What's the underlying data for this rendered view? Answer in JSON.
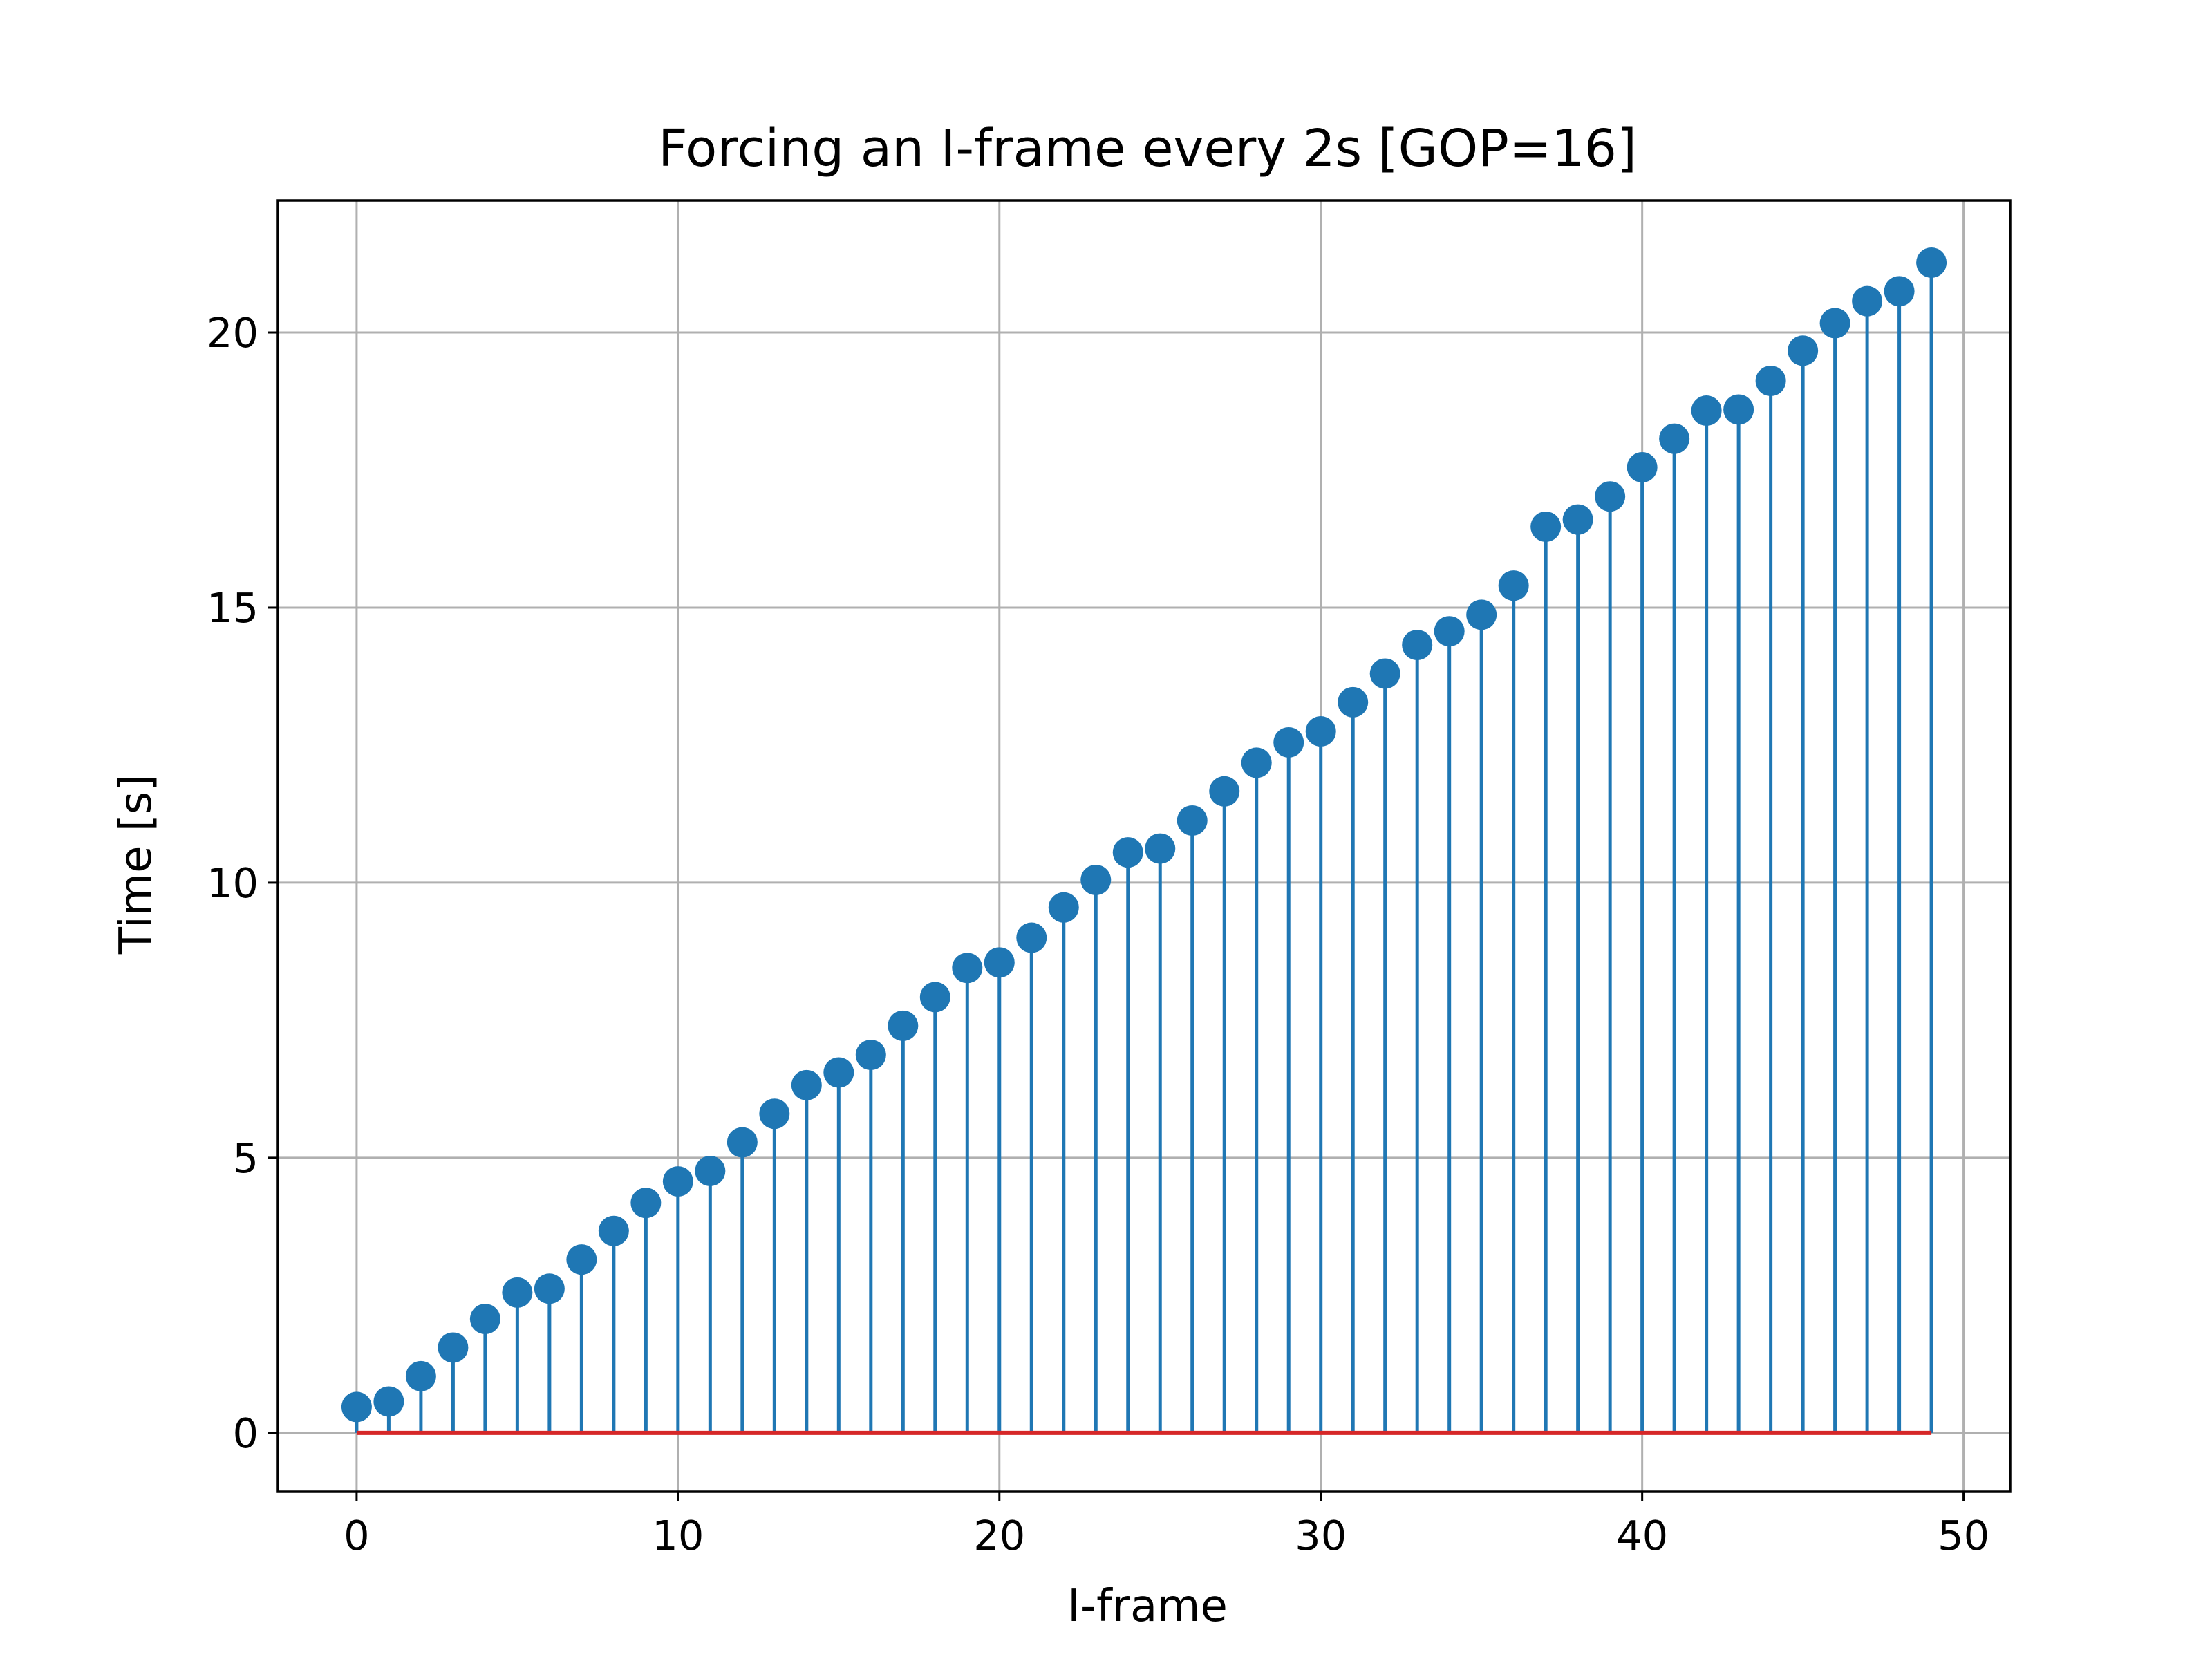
{
  "chart_data": {
    "type": "stem",
    "title": "Forcing an I-frame every 2s [GOP=16]",
    "xlabel": "I-frame",
    "ylabel": "Time [s]",
    "xlim": [
      -2.45,
      51.45
    ],
    "ylim": [
      -1.07,
      22.4
    ],
    "xticks": [
      0,
      10,
      20,
      30,
      40,
      50
    ],
    "yticks": [
      0,
      5,
      10,
      15,
      20
    ],
    "grid": true,
    "legend": null,
    "baseline": 0,
    "colors": {
      "stem": "#1f77b4",
      "marker": "#1f77b4",
      "baseline": "#d62728"
    },
    "x": [
      0,
      1,
      2,
      3,
      4,
      5,
      6,
      7,
      8,
      9,
      10,
      11,
      12,
      13,
      14,
      15,
      16,
      17,
      18,
      19,
      20,
      21,
      22,
      23,
      24,
      25,
      26,
      27,
      28,
      29,
      30,
      31,
      32,
      33,
      34,
      35,
      36,
      37,
      38,
      39,
      40,
      41,
      42,
      43,
      44,
      45,
      46,
      47,
      48,
      49
    ],
    "values": [
      0.47,
      0.57,
      1.03,
      1.55,
      2.07,
      2.55,
      2.62,
      3.15,
      3.67,
      4.18,
      4.57,
      4.76,
      5.28,
      5.8,
      6.32,
      6.55,
      6.87,
      7.4,
      7.92,
      8.45,
      8.55,
      9.0,
      9.55,
      10.05,
      10.55,
      10.62,
      11.13,
      11.66,
      12.18,
      12.55,
      12.75,
      13.28,
      13.8,
      14.32,
      14.57,
      14.87,
      15.4,
      16.47,
      16.6,
      17.02,
      17.55,
      18.07,
      18.58,
      18.6,
      19.12,
      19.67,
      20.17,
      20.57,
      20.75,
      21.27
    ]
  }
}
